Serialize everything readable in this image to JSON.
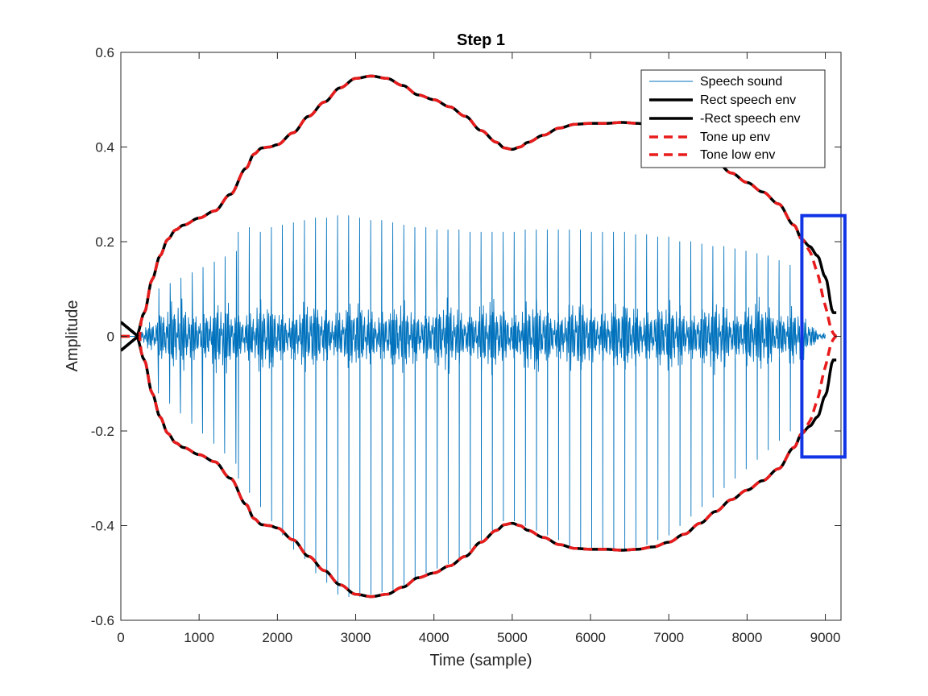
{
  "chart_data": {
    "type": "line",
    "title": "Step 1",
    "xlabel": "Time (sample)",
    "ylabel": "Amplitude",
    "xlim": [
      0,
      9200
    ],
    "ylim": [
      -0.6,
      0.6
    ],
    "xticks": [
      0,
      1000,
      2000,
      3000,
      4000,
      5000,
      6000,
      7000,
      8000,
      9000
    ],
    "yticks": [
      -0.6,
      -0.4,
      -0.2,
      0,
      0.2,
      0.4,
      0.6
    ],
    "xtick_labels": [
      "0",
      "1000",
      "2000",
      "3000",
      "4000",
      "5000",
      "6000",
      "7000",
      "8000",
      "9000"
    ],
    "ytick_labels": [
      "-0.6",
      "-0.4",
      "-0.2",
      "0",
      "0.2",
      "0.4",
      "0.6"
    ],
    "grid": false,
    "legend_position": "top-right",
    "envelope_x": [
      0,
      100,
      200,
      300,
      400,
      500,
      600,
      700,
      800,
      1000,
      1200,
      1400,
      1600,
      1700,
      1800,
      1900,
      2000,
      2200,
      2400,
      2600,
      2800,
      3000,
      3200,
      3400,
      3600,
      3800,
      4000,
      4200,
      4400,
      4600,
      4800,
      4900,
      5000,
      5100,
      5200,
      5400,
      5600,
      5800,
      6000,
      6200,
      6400,
      6600,
      6800,
      7000,
      7200,
      7400,
      7600,
      7800,
      8000,
      8200,
      8400,
      8600,
      8700,
      8800,
      8900,
      9000,
      9100
    ],
    "envelope_upper": [
      0.0,
      0.0,
      0.0,
      0.05,
      0.12,
      0.17,
      0.205,
      0.225,
      0.235,
      0.25,
      0.265,
      0.3,
      0.355,
      0.385,
      0.398,
      0.4,
      0.405,
      0.43,
      0.465,
      0.495,
      0.525,
      0.545,
      0.55,
      0.545,
      0.53,
      0.51,
      0.5,
      0.485,
      0.465,
      0.435,
      0.41,
      0.398,
      0.395,
      0.4,
      0.41,
      0.425,
      0.44,
      0.448,
      0.45,
      0.45,
      0.452,
      0.45,
      0.445,
      0.435,
      0.418,
      0.395,
      0.37,
      0.345,
      0.325,
      0.305,
      0.28,
      0.235,
      0.205,
      0.19,
      0.17,
      0.125,
      0.05
    ],
    "series": [
      {
        "name": "Speech sound",
        "style": "thin-solid",
        "color": "#0072BD",
        "x_start": 0,
        "x_end": 9000,
        "pitch_period": 141,
        "peak_x": [
          1500,
          1641,
          1782,
          1923,
          2064,
          2205,
          2346,
          2487,
          2628,
          2769,
          2910,
          3051,
          3192,
          3333,
          3474,
          3615,
          3756,
          3897,
          4038,
          4179,
          4320,
          4461,
          4602,
          4743,
          4884,
          5025,
          5166,
          5307,
          5448,
          5589,
          5730,
          5871,
          6012,
          6153,
          6294,
          6435,
          6576,
          6717,
          6858,
          6999,
          7140,
          7281,
          7422,
          7563,
          7704,
          7845,
          7986,
          8127,
          8268,
          8409,
          8550
        ],
        "peak_top": [
          0.22,
          0.23,
          0.22,
          0.23,
          0.235,
          0.24,
          0.245,
          0.25,
          0.25,
          0.255,
          0.255,
          0.25,
          0.245,
          0.245,
          0.24,
          0.235,
          0.23,
          0.23,
          0.225,
          0.225,
          0.225,
          0.22,
          0.22,
          0.22,
          0.22,
          0.22,
          0.225,
          0.225,
          0.225,
          0.225,
          0.225,
          0.225,
          0.22,
          0.22,
          0.22,
          0.22,
          0.215,
          0.215,
          0.21,
          0.21,
          0.2,
          0.2,
          0.195,
          0.19,
          0.19,
          0.185,
          0.18,
          0.175,
          0.17,
          0.16,
          0.15
        ],
        "peak_bottom": [
          -0.3,
          -0.33,
          -0.36,
          -0.39,
          -0.42,
          -0.45,
          -0.47,
          -0.5,
          -0.52,
          -0.545,
          -0.55,
          -0.55,
          -0.545,
          -0.54,
          -0.535,
          -0.525,
          -0.51,
          -0.5,
          -0.49,
          -0.48,
          -0.47,
          -0.45,
          -0.43,
          -0.41,
          -0.39,
          -0.39,
          -0.4,
          -0.41,
          -0.42,
          -0.43,
          -0.445,
          -0.45,
          -0.45,
          -0.45,
          -0.45,
          -0.45,
          -0.445,
          -0.44,
          -0.43,
          -0.42,
          -0.4,
          -0.38,
          -0.36,
          -0.34,
          -0.32,
          -0.3,
          -0.28,
          -0.26,
          -0.24,
          -0.22,
          -0.2
        ],
        "body_amplitude": 0.09
      },
      {
        "name": "Rect speech env",
        "style": "thick-solid",
        "color": "#000000",
        "values_key": "envelope_upper",
        "sign": 1
      },
      {
        "name": "-Rect speech env",
        "style": "thick-solid",
        "color": "#000000",
        "values_key": "envelope_upper",
        "sign": -1
      },
      {
        "name": "Tone up env",
        "style": "thick-dashed",
        "color": "#E81C1C",
        "values_key": "envelope_upper",
        "sign": 1,
        "tail": "to-zero"
      },
      {
        "name": "Tone low env",
        "style": "thick-dashed",
        "color": "#E81C1C",
        "values_key": "envelope_upper",
        "sign": -1,
        "tail": "to-zero"
      }
    ],
    "annotations": [
      {
        "type": "rectangle",
        "color": "#1034E6",
        "x_range": [
          8700,
          9250
        ],
        "y_range": [
          -0.255,
          0.255
        ]
      }
    ]
  }
}
